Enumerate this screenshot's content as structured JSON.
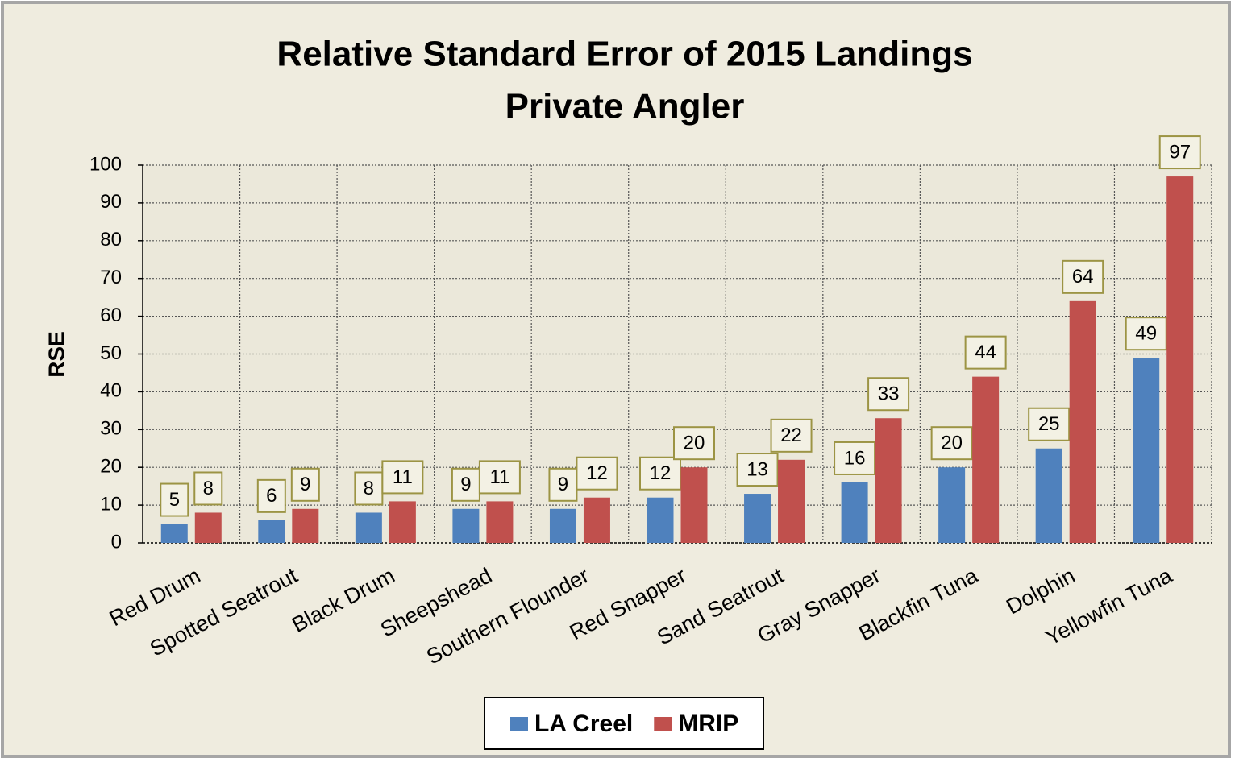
{
  "chart_data": {
    "type": "bar",
    "title": "Relative Standard Error of 2015 Landings",
    "subtitle": "Private Angler",
    "y_label": "RSE",
    "categories": [
      "Red Drum",
      "Spotted Seatrout",
      "Black Drum",
      "Sheepshead",
      "Southern Flounder",
      "Red Snapper",
      "Sand Seatrout",
      "Gray Snapper",
      "Blackfin Tuna",
      "Dolphin",
      "Yellowfin Tuna"
    ],
    "series": [
      {
        "name": "LA Creel",
        "color": "#4f81bd",
        "values": [
          5,
          6,
          8,
          9,
          9,
          12,
          13,
          16,
          20,
          25,
          49
        ]
      },
      {
        "name": "MRIP",
        "color": "#c0504d",
        "values": [
          8,
          9,
          11,
          11,
          12,
          20,
          22,
          33,
          44,
          64,
          97
        ]
      }
    ],
    "ylim": [
      0,
      100
    ],
    "yticks": [
      0,
      10,
      20,
      30,
      40,
      50,
      60,
      70,
      80,
      90,
      100
    ],
    "grid": true,
    "legend": "bottom"
  }
}
